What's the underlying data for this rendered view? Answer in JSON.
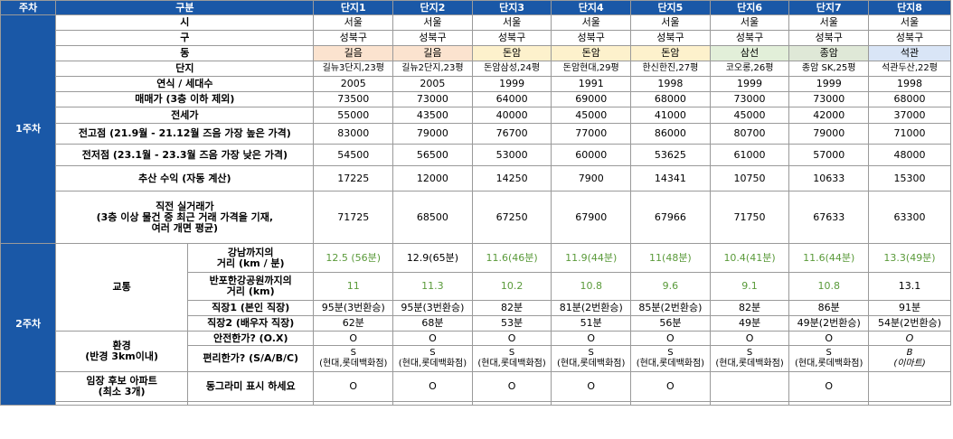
{
  "header": {
    "week": "주차",
    "category": "구분",
    "complexes": [
      "단지1",
      "단지2",
      "단지3",
      "단지4",
      "단지5",
      "단지6",
      "단지7",
      "단지8"
    ]
  },
  "week1_label": "1주차",
  "week2_label": "2주차",
  "rows": {
    "city": {
      "label": "시",
      "values": [
        "서울",
        "서울",
        "서울",
        "서울",
        "서울",
        "서울",
        "서울",
        "서울"
      ]
    },
    "gu": {
      "label": "구",
      "values": [
        "성북구",
        "성북구",
        "성북구",
        "성북구",
        "성북구",
        "성북구",
        "성북구",
        "성북구"
      ]
    },
    "dong": {
      "label": "동",
      "values": [
        "길음",
        "길음",
        "돈암",
        "돈암",
        "돈암",
        "삼선",
        "종암",
        "석관"
      ],
      "colors": [
        "#fbe3cf",
        "#fbe3cf",
        "#fdf1cc",
        "#fdf1cc",
        "#fdf1cc",
        "#e2efd9",
        "#dfe8d7",
        "#d9e5f6"
      ]
    },
    "complex": {
      "label": "단지",
      "values": [
        "길뉴3단지,23평",
        "길뉴2단지,23평",
        "돈암삼성,24평",
        "돈암현대,29평",
        "한신한진,27평",
        "코오롱,26평",
        "종암 SK,25평",
        "석관두산,22평"
      ]
    },
    "year": {
      "label": "연식 / 세대수",
      "values": [
        "2005",
        "2005",
        "1999",
        "1991",
        "1998",
        "1999",
        "1999",
        "1998"
      ]
    },
    "sale": {
      "label": "매매가 (3층 이하 제외)",
      "values": [
        "73500",
        "73000",
        "64000",
        "69000",
        "68000",
        "73000",
        "73000",
        "68000"
      ]
    },
    "jeonse": {
      "label": "전세가",
      "values": [
        "55000",
        "43500",
        "40000",
        "45000",
        "41000",
        "45000",
        "42000",
        "37000"
      ]
    },
    "high": {
      "label": "전고점 (21.9월 - 21.12월 즈음 가장 높은 가격)",
      "values": [
        "83000",
        "79000",
        "76700",
        "77000",
        "86000",
        "80700",
        "79000",
        "71000"
      ]
    },
    "low": {
      "label": "전저점 (23.1월 - 23.3월 즈음 가장 낮은 가격)",
      "values": [
        "54500",
        "56500",
        "53000",
        "60000",
        "53625",
        "61000",
        "57000",
        "48000"
      ]
    },
    "profit": {
      "label": "추산 수익 (자동 계산)",
      "values": [
        "17225",
        "12000",
        "14250",
        "7900",
        "14341",
        "10750",
        "10633",
        "15300"
      ]
    },
    "recent": {
      "label_lines": [
        "직전 실거래가",
        "(3층 이상 물건 중 최근 거래 가격을 기재,",
        "여러 개면 평균)"
      ],
      "values": [
        "71725",
        "68500",
        "67250",
        "67900",
        "67966",
        "71750",
        "67633",
        "63300"
      ]
    }
  },
  "transport": {
    "group_label": "교통",
    "gangnam": {
      "label_lines": [
        "강남까지의",
        "거리 (km / 분)"
      ],
      "values": [
        "12.5 (56분)",
        "12.9(65분)",
        "11.6(46분)",
        "11.9(44분)",
        "11(48분)",
        "10.4(41분)",
        "11.6(44분)",
        "13.3(49분)"
      ]
    },
    "hangang": {
      "label_lines": [
        "반포한강공원까지의",
        "거리 (km)"
      ],
      "values": [
        "11",
        "11.3",
        "10.2",
        "10.8",
        "9.6",
        "9.1",
        "10.8",
        "13.1"
      ]
    },
    "work1": {
      "label": "직장1 (본인 직장)",
      "values": [
        "95분(3번환승)",
        "95분(3번환승)",
        "82분",
        "81분(2번환승)",
        "85분(2번환승)",
        "82분",
        "86분",
        "91분"
      ]
    },
    "work2": {
      "label": "직장2 (배우자 직장)",
      "values": [
        "62분",
        "68분",
        "53분",
        "51분",
        "56분",
        "49분",
        "49분(2번환승)",
        "54분(2번환승)"
      ]
    }
  },
  "environment": {
    "group_label_lines": [
      "환경",
      "(반경 3km이내)"
    ],
    "safety": {
      "label": "안전한가? (O.X)",
      "values": [
        "O",
        "O",
        "O",
        "O",
        "O",
        "O",
        "O",
        "O"
      ]
    },
    "convenience": {
      "label": "편리한가? (S/A/B/C)",
      "grades": [
        "S",
        "S",
        "S",
        "S",
        "S",
        "S",
        "S",
        "B"
      ],
      "notes": [
        "(현대,롯데백화점)",
        "(현대,롯데백화점)",
        "(현대,롯데백화점)",
        "(현대,롯데백화점)",
        "(현대,롯데백화점)",
        "(현대,롯데백화점)",
        "(현대,롯데백화점)",
        "(이마트)"
      ]
    }
  },
  "imjang": {
    "group_label_lines": [
      "임장 후보 아파트",
      "(최소 3개)"
    ],
    "label": "동그라미 표시 하세요",
    "values": [
      "O",
      "O",
      "O",
      "O",
      "O",
      "",
      "O",
      ""
    ]
  }
}
